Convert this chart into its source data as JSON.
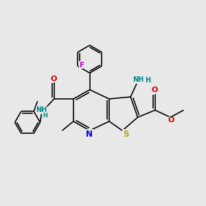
{
  "bg_color": "#e8e8e8",
  "fig_size": [
    3.0,
    3.0
  ],
  "dpi": 100,
  "bond_color": "#000000",
  "atom_colors": {
    "N": "#0000cc",
    "O": "#cc0000",
    "S": "#b8a000",
    "F": "#cc00cc",
    "NH": "#008888",
    "C": "#000000"
  },
  "font_size": 7.5
}
